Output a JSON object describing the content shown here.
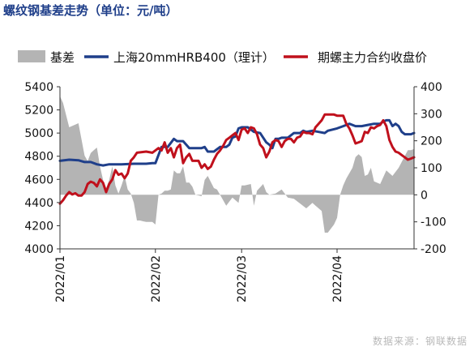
{
  "title": "螺纹钢基差走势（单位：元/吨）",
  "source": "数据来源：钢联数据",
  "chart_data": {
    "type": "area+line",
    "legend_position": "top",
    "grid": false,
    "x_ticks": [
      "2022/01",
      "2022/02",
      "2022/03",
      "2022/04"
    ],
    "x_tick_day_index": [
      0,
      31,
      59,
      90
    ],
    "x_range_days": [
      0,
      115
    ],
    "y_left": {
      "min": 4000,
      "max": 5400,
      "ticks": [
        4000,
        4200,
        4400,
        4600,
        4800,
        5000,
        5200,
        5400
      ]
    },
    "y_right": {
      "min": -200,
      "max": 400,
      "ticks": [
        -200,
        -100,
        0,
        100,
        200,
        300,
        400
      ]
    },
    "series": [
      {
        "name": "基差",
        "axis": "right",
        "style": "area",
        "color": "#b4b4b4",
        "points": [
          [
            0,
            365
          ],
          [
            1,
            340
          ],
          [
            3,
            250
          ],
          [
            6,
            265
          ],
          [
            7,
            205
          ],
          [
            8,
            145
          ],
          [
            9,
            125
          ],
          [
            10,
            155
          ],
          [
            11,
            165
          ],
          [
            12,
            175
          ],
          [
            13,
            105
          ],
          [
            14,
            55
          ],
          [
            15,
            25
          ],
          [
            16,
            55
          ],
          [
            17,
            105
          ],
          [
            18,
            35
          ],
          [
            19,
            5
          ],
          [
            20,
            35
          ],
          [
            21,
            70
          ],
          [
            22,
            20
          ],
          [
            23,
            5
          ],
          [
            24,
            -30
          ],
          [
            25,
            -95
          ],
          [
            26,
            -95
          ],
          [
            27,
            -98
          ],
          [
            28,
            -100
          ],
          [
            29,
            -100
          ],
          [
            30,
            -100
          ],
          [
            31,
            -110
          ],
          [
            32,
            0
          ],
          [
            33,
            5
          ],
          [
            34,
            15
          ],
          [
            35,
            15
          ],
          [
            36,
            20
          ],
          [
            37,
            90
          ],
          [
            38,
            80
          ],
          [
            39,
            80
          ],
          [
            40,
            105
          ],
          [
            41,
            45
          ],
          [
            42,
            45
          ],
          [
            43,
            30
          ],
          [
            44,
            0
          ],
          [
            46,
            -5
          ],
          [
            47,
            55
          ],
          [
            48,
            70
          ],
          [
            50,
            25
          ],
          [
            51,
            20
          ],
          [
            52,
            0
          ],
          [
            54,
            -40
          ],
          [
            55,
            -25
          ],
          [
            56,
            -10
          ],
          [
            58,
            -30
          ],
          [
            59,
            35
          ],
          [
            60,
            35
          ],
          [
            62,
            40
          ],
          [
            63,
            -40
          ],
          [
            64,
            15
          ],
          [
            66,
            40
          ],
          [
            67,
            10
          ],
          [
            68,
            0
          ],
          [
            70,
            5
          ],
          [
            72,
            20
          ],
          [
            74,
            -10
          ],
          [
            76,
            -15
          ],
          [
            80,
            -50
          ],
          [
            82,
            -30
          ],
          [
            83,
            -40
          ],
          [
            85,
            -60
          ],
          [
            86,
            -140
          ],
          [
            87,
            -140
          ],
          [
            88,
            -125
          ],
          [
            89,
            -110
          ],
          [
            90,
            -85
          ],
          [
            91,
            0
          ],
          [
            92,
            35
          ],
          [
            93,
            60
          ],
          [
            95,
            100
          ],
          [
            96,
            140
          ],
          [
            97,
            150
          ],
          [
            98,
            140
          ],
          [
            99,
            70
          ],
          [
            100,
            75
          ],
          [
            101,
            100
          ],
          [
            102,
            50
          ],
          [
            104,
            40
          ],
          [
            106,
            90
          ],
          [
            108,
            70
          ],
          [
            110,
            100
          ],
          [
            113,
            165
          ],
          [
            114,
            165
          ],
          [
            115,
            170
          ]
        ]
      },
      {
        "name": "上海20mmHRB400（理计）",
        "axis": "left",
        "style": "line",
        "color": "#1f3f8a",
        "points": [
          [
            0,
            4760
          ],
          [
            3,
            4770
          ],
          [
            6,
            4765
          ],
          [
            8,
            4750
          ],
          [
            10,
            4750
          ],
          [
            12,
            4730
          ],
          [
            14,
            4720
          ],
          [
            16,
            4730
          ],
          [
            20,
            4730
          ],
          [
            24,
            4735
          ],
          [
            28,
            4735
          ],
          [
            30,
            4740
          ],
          [
            31,
            4740
          ],
          [
            33,
            4880
          ],
          [
            35,
            4880
          ],
          [
            37,
            4950
          ],
          [
            38,
            4930
          ],
          [
            40,
            4930
          ],
          [
            42,
            4870
          ],
          [
            44,
            4870
          ],
          [
            46,
            4870
          ],
          [
            47,
            4880
          ],
          [
            48,
            4840
          ],
          [
            50,
            4840
          ],
          [
            52,
            4880
          ],
          [
            54,
            4880
          ],
          [
            55,
            4900
          ],
          [
            56,
            4960
          ],
          [
            57,
            4970
          ],
          [
            58,
            5040
          ],
          [
            59,
            5050
          ],
          [
            60,
            5050
          ],
          [
            61,
            5050
          ],
          [
            63,
            5010
          ],
          [
            65,
            5000
          ],
          [
            67,
            4920
          ],
          [
            68,
            4900
          ],
          [
            69,
            4870
          ],
          [
            70,
            4950
          ],
          [
            71,
            4950
          ],
          [
            72,
            4960
          ],
          [
            74,
            4960
          ],
          [
            76,
            5000
          ],
          [
            78,
            5000
          ],
          [
            79,
            5020
          ],
          [
            80,
            5010
          ],
          [
            82,
            5020
          ],
          [
            84,
            5010
          ],
          [
            86,
            5000
          ],
          [
            87,
            5020
          ],
          [
            90,
            5040
          ],
          [
            92,
            5060
          ],
          [
            94,
            5080
          ],
          [
            96,
            5060
          ],
          [
            98,
            5060
          ],
          [
            100,
            5070
          ],
          [
            102,
            5080
          ],
          [
            104,
            5080
          ],
          [
            105,
            5100
          ],
          [
            106,
            5110
          ],
          [
            107,
            5110
          ],
          [
            108,
            5060
          ],
          [
            109,
            5080
          ],
          [
            110,
            5060
          ],
          [
            111,
            5010
          ],
          [
            112,
            4990
          ],
          [
            114,
            4990
          ],
          [
            115,
            5000
          ]
        ]
      },
      {
        "name": "期螺主力合约收盘价",
        "axis": "left",
        "style": "line",
        "color": "#c0101c",
        "points": [
          [
            0,
            4390
          ],
          [
            1,
            4420
          ],
          [
            2,
            4460
          ],
          [
            3,
            4490
          ],
          [
            4,
            4470
          ],
          [
            5,
            4480
          ],
          [
            6,
            4460
          ],
          [
            7,
            4460
          ],
          [
            8,
            4490
          ],
          [
            9,
            4560
          ],
          [
            10,
            4580
          ],
          [
            11,
            4570
          ],
          [
            12,
            4540
          ],
          [
            13,
            4600
          ],
          [
            14,
            4570
          ],
          [
            15,
            4490
          ],
          [
            16,
            4560
          ],
          [
            17,
            4600
          ],
          [
            18,
            4680
          ],
          [
            19,
            4640
          ],
          [
            20,
            4650
          ],
          [
            21,
            4610
          ],
          [
            22,
            4650
          ],
          [
            23,
            4760
          ],
          [
            24,
            4790
          ],
          [
            25,
            4830
          ],
          [
            28,
            4840
          ],
          [
            30,
            4830
          ],
          [
            31,
            4850
          ],
          [
            32,
            4870
          ],
          [
            33,
            4850
          ],
          [
            34,
            4920
          ],
          [
            35,
            4830
          ],
          [
            36,
            4870
          ],
          [
            37,
            4790
          ],
          [
            38,
            4870
          ],
          [
            39,
            4900
          ],
          [
            40,
            4740
          ],
          [
            41,
            4790
          ],
          [
            42,
            4820
          ],
          [
            43,
            4760
          ],
          [
            44,
            4760
          ],
          [
            45,
            4760
          ],
          [
            46,
            4700
          ],
          [
            47,
            4730
          ],
          [
            48,
            4690
          ],
          [
            49,
            4710
          ],
          [
            50,
            4770
          ],
          [
            51,
            4820
          ],
          [
            52,
            4850
          ],
          [
            53,
            4890
          ],
          [
            54,
            4940
          ],
          [
            55,
            4960
          ],
          [
            56,
            4980
          ],
          [
            57,
            5000
          ],
          [
            58,
            4940
          ],
          [
            59,
            5030
          ],
          [
            60,
            5040
          ],
          [
            61,
            5000
          ],
          [
            62,
            5050
          ],
          [
            63,
            5040
          ],
          [
            64,
            4990
          ],
          [
            65,
            4900
          ],
          [
            66,
            4870
          ],
          [
            67,
            4790
          ],
          [
            68,
            4840
          ],
          [
            69,
            4920
          ],
          [
            70,
            4940
          ],
          [
            71,
            4930
          ],
          [
            72,
            4880
          ],
          [
            73,
            4930
          ],
          [
            74,
            4950
          ],
          [
            75,
            4950
          ],
          [
            76,
            4920
          ],
          [
            77,
            4960
          ],
          [
            78,
            4970
          ],
          [
            79,
            5010
          ],
          [
            80,
            5000
          ],
          [
            81,
            5000
          ],
          [
            82,
            4990
          ],
          [
            83,
            5050
          ],
          [
            84,
            5080
          ],
          [
            85,
            5110
          ],
          [
            86,
            5160
          ],
          [
            87,
            5160
          ],
          [
            88,
            5160
          ],
          [
            89,
            5160
          ],
          [
            90,
            5150
          ],
          [
            91,
            5150
          ],
          [
            92,
            5150
          ],
          [
            93,
            5080
          ],
          [
            94,
            5040
          ],
          [
            95,
            4980
          ],
          [
            96,
            4910
          ],
          [
            97,
            4920
          ],
          [
            98,
            4930
          ],
          [
            99,
            5010
          ],
          [
            100,
            5000
          ],
          [
            101,
            5050
          ],
          [
            102,
            5040
          ],
          [
            103,
            5060
          ],
          [
            104,
            5070
          ],
          [
            105,
            5110
          ],
          [
            106,
            5060
          ],
          [
            107,
            4940
          ],
          [
            108,
            4880
          ],
          [
            109,
            4840
          ],
          [
            110,
            4830
          ],
          [
            111,
            4810
          ],
          [
            112,
            4790
          ],
          [
            113,
            4770
          ],
          [
            114,
            4780
          ],
          [
            115,
            4790
          ]
        ]
      }
    ]
  }
}
